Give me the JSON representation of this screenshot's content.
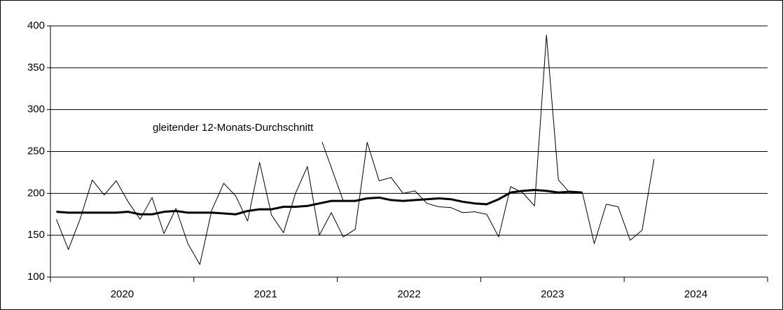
{
  "chart_data": {
    "type": "line",
    "categories": [
      null,
      null,
      null,
      null,
      null,
      null,
      null,
      null,
      null,
      null,
      null,
      null,
      null,
      null,
      null,
      null,
      null,
      null,
      null,
      null,
      null,
      null,
      null,
      null,
      null,
      null,
      null,
      null,
      null,
      null,
      null,
      null,
      null,
      null,
      null,
      null,
      null,
      null,
      null,
      null,
      null,
      null,
      null,
      null,
      null,
      null,
      null,
      null,
      null,
      null,
      null,
      null,
      null,
      null,
      null,
      null,
      null,
      null,
      null,
      null
    ],
    "groups": [
      "2020",
      "2021",
      "2022",
      "2023",
      "2024"
    ],
    "series": [
      {
        "color": "#000000",
        "width": 1,
        "values": [
          169,
          133,
          170,
          216,
          198,
          215,
          190,
          169,
          195,
          152,
          182,
          140,
          115,
          180,
          212,
          197,
          167,
          237,
          174,
          153,
          200,
          232,
          150,
          177,
          148,
          157,
          261,
          215,
          219,
          200,
          203,
          188,
          184,
          183,
          177,
          178,
          175,
          148,
          208,
          201,
          185,
          389,
          216,
          200,
          201,
          140,
          187,
          184,
          144,
          156,
          241,
          null,
          null,
          null,
          null,
          null,
          null,
          null,
          null,
          null
        ]
      },
      {
        "name": "gleitender 12-Monats-Durchschnitt",
        "color": "#000000",
        "width": 3,
        "values": [
          178,
          177,
          177,
          177,
          177,
          177,
          178,
          175,
          175,
          178,
          179,
          177,
          177,
          177,
          176,
          175,
          179,
          181,
          181,
          184,
          184,
          185,
          188,
          191,
          191,
          191,
          194,
          195,
          192,
          191,
          192,
          193,
          194,
          193,
          190,
          188,
          187,
          193,
          201,
          203,
          204,
          203,
          201,
          202,
          201,
          null,
          null,
          null,
          null,
          null,
          null,
          null,
          null,
          null,
          null,
          null,
          null,
          null,
          null,
          null
        ]
      }
    ],
    "ylim": [
      100,
      400
    ],
    "yticks": [
      100,
      150,
      200,
      250,
      300,
      350,
      400
    ],
    "grid": true
  }
}
